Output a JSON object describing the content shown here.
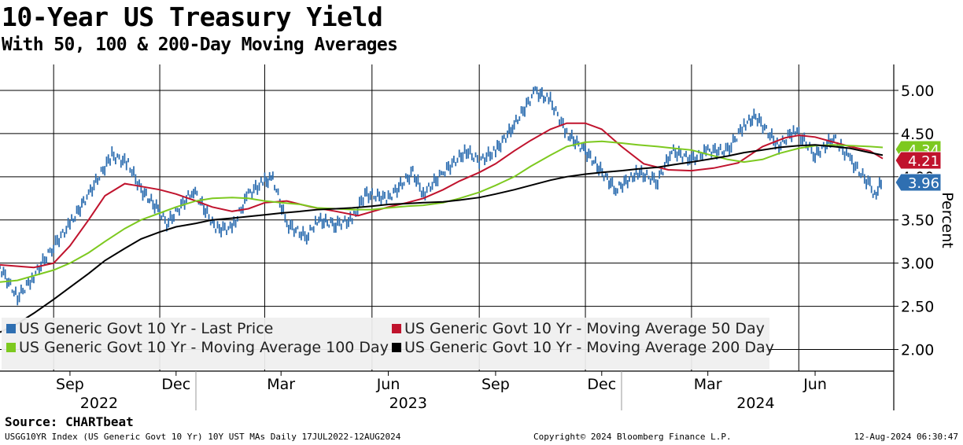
{
  "header": {
    "title": "10-Year US Treasury Yield",
    "subtitle": "With 50, 100 & 200-Day Moving Averages"
  },
  "footer": {
    "source": "Source: CHARTbeat",
    "left": "USGG10YR Index (US Generic Govt 10 Yr) 10Y UST MAs  Daily 17JUL2022-12AUG2024",
    "middle": "Copyright© 2024 Bloomberg Finance L.P.",
    "right": "12-Aug-2024 06:30:47"
  },
  "chart_data": {
    "type": "line",
    "x_range": [
      "2022-07-17",
      "2024-08-12"
    ],
    "ylim": [
      1.75,
      5.3
    ],
    "y_ticks": [
      "5.00",
      "4.50",
      "4.00",
      "3.50",
      "3.00",
      "2.50",
      "2.00"
    ],
    "ylabel": "Percent",
    "grid": true,
    "legend_position": "bottom-left",
    "month_ticks": [
      {
        "date": "2022-09-15",
        "label": "Sep"
      },
      {
        "date": "2022-12-15",
        "label": "Dec"
      },
      {
        "date": "2023-03-15",
        "label": "Mar"
      },
      {
        "date": "2023-06-15",
        "label": "Jun"
      },
      {
        "date": "2023-09-15",
        "label": "Sep"
      },
      {
        "date": "2023-12-15",
        "label": "Dec"
      },
      {
        "date": "2024-03-15",
        "label": "Mar"
      },
      {
        "date": "2024-06-15",
        "label": "Jun"
      }
    ],
    "year_labels": [
      {
        "date": "2022-10-10",
        "label": "2022"
      },
      {
        "date": "2023-07-02",
        "label": "2023"
      },
      {
        "date": "2024-04-25",
        "label": "2024"
      }
    ],
    "year_dividers": [
      "2023-01-01",
      "2024-01-01"
    ],
    "grid_dates": [
      "2022-09-01",
      "2022-12-01",
      "2023-03-01",
      "2023-06-01",
      "2023-09-01",
      "2023-12-01",
      "2024-03-01",
      "2024-06-01"
    ],
    "series": [
      {
        "name": "US Generic Govt 10 Yr - Last Price",
        "color": "#2f6fb1",
        "style": "ohlc",
        "x": [
          "2022-07-17",
          "2022-08-01",
          "2022-08-15",
          "2022-09-01",
          "2022-09-15",
          "2022-10-01",
          "2022-10-21",
          "2022-11-04",
          "2022-11-15",
          "2022-12-01",
          "2022-12-07",
          "2022-12-30",
          "2023-01-18",
          "2023-02-01",
          "2023-02-15",
          "2023-03-01",
          "2023-03-08",
          "2023-03-20",
          "2023-04-06",
          "2023-04-15",
          "2023-05-01",
          "2023-05-15",
          "2023-05-26",
          "2023-06-15",
          "2023-07-06",
          "2023-07-15",
          "2023-08-01",
          "2023-08-21",
          "2023-09-01",
          "2023-09-15",
          "2023-10-01",
          "2023-10-19",
          "2023-11-01",
          "2023-11-15",
          "2023-12-01",
          "2023-12-27",
          "2024-01-15",
          "2024-02-01",
          "2024-02-13",
          "2024-03-01",
          "2024-03-15",
          "2024-04-01",
          "2024-04-15",
          "2024-04-25",
          "2024-05-15",
          "2024-05-29",
          "2024-06-15",
          "2024-07-01",
          "2024-07-15",
          "2024-08-01",
          "2024-08-05",
          "2024-08-12"
        ],
        "values": [
          2.95,
          2.6,
          2.85,
          3.2,
          3.45,
          3.8,
          4.25,
          4.15,
          3.85,
          3.6,
          3.45,
          3.85,
          3.4,
          3.4,
          3.8,
          3.95,
          3.98,
          3.45,
          3.3,
          3.5,
          3.45,
          3.5,
          3.8,
          3.75,
          4.05,
          3.8,
          4.05,
          4.3,
          4.18,
          4.3,
          4.6,
          4.99,
          4.88,
          4.5,
          4.3,
          3.85,
          4.05,
          3.95,
          4.3,
          4.2,
          4.3,
          4.3,
          4.6,
          4.7,
          4.35,
          4.55,
          4.25,
          4.45,
          4.2,
          3.9,
          3.78,
          3.96
        ]
      },
      {
        "name": "US Generic Govt 10 Yr - Moving Average 50 Day",
        "color": "#c0132d",
        "x": [
          "2022-07-17",
          "2022-08-15",
          "2022-09-01",
          "2022-09-15",
          "2022-10-01",
          "2022-10-15",
          "2022-11-01",
          "2022-11-10",
          "2022-12-01",
          "2022-12-15",
          "2023-01-01",
          "2023-01-15",
          "2023-02-01",
          "2023-02-15",
          "2023-03-01",
          "2023-03-20",
          "2023-04-10",
          "2023-05-01",
          "2023-05-20",
          "2023-06-15",
          "2023-07-01",
          "2023-07-15",
          "2023-08-01",
          "2023-08-15",
          "2023-09-01",
          "2023-09-15",
          "2023-10-01",
          "2023-10-15",
          "2023-11-01",
          "2023-11-15",
          "2023-12-01",
          "2023-12-15",
          "2024-01-01",
          "2024-01-20",
          "2024-02-10",
          "2024-03-01",
          "2024-03-20",
          "2024-04-10",
          "2024-05-01",
          "2024-05-20",
          "2024-06-01",
          "2024-06-15",
          "2024-07-01",
          "2024-07-15",
          "2024-08-01",
          "2024-08-12"
        ],
        "values": [
          2.98,
          2.95,
          3.0,
          3.2,
          3.5,
          3.78,
          3.92,
          3.9,
          3.85,
          3.8,
          3.72,
          3.65,
          3.6,
          3.63,
          3.7,
          3.72,
          3.65,
          3.6,
          3.55,
          3.65,
          3.7,
          3.75,
          3.85,
          3.95,
          4.05,
          4.15,
          4.3,
          4.42,
          4.55,
          4.62,
          4.62,
          4.55,
          4.35,
          4.15,
          4.08,
          4.07,
          4.1,
          4.16,
          4.35,
          4.45,
          4.48,
          4.46,
          4.4,
          4.35,
          4.3,
          4.21
        ]
      },
      {
        "name": "US Generic Govt 10 Yr - Moving Average 100 Day",
        "color": "#7dc91f",
        "x": [
          "2022-07-17",
          "2022-08-01",
          "2022-09-01",
          "2022-09-15",
          "2022-10-01",
          "2022-10-15",
          "2022-11-01",
          "2022-11-15",
          "2022-12-01",
          "2022-12-15",
          "2023-01-01",
          "2023-01-15",
          "2023-02-01",
          "2023-02-15",
          "2023-03-01",
          "2023-03-15",
          "2023-04-01",
          "2023-04-15",
          "2023-05-01",
          "2023-05-15",
          "2023-06-01",
          "2023-06-15",
          "2023-07-01",
          "2023-07-15",
          "2023-08-01",
          "2023-08-15",
          "2023-09-01",
          "2023-09-15",
          "2023-10-01",
          "2023-10-15",
          "2023-11-01",
          "2023-11-15",
          "2023-12-01",
          "2023-12-15",
          "2024-01-01",
          "2024-01-15",
          "2024-02-01",
          "2024-02-15",
          "2024-03-01",
          "2024-03-15",
          "2024-04-01",
          "2024-04-15",
          "2024-05-01",
          "2024-05-15",
          "2024-06-01",
          "2024-06-15",
          "2024-07-01",
          "2024-07-15",
          "2024-08-01",
          "2024-08-12"
        ],
        "values": [
          2.78,
          2.8,
          2.92,
          3.0,
          3.12,
          3.25,
          3.4,
          3.5,
          3.58,
          3.65,
          3.72,
          3.75,
          3.76,
          3.75,
          3.72,
          3.7,
          3.68,
          3.64,
          3.63,
          3.62,
          3.62,
          3.64,
          3.66,
          3.67,
          3.7,
          3.75,
          3.82,
          3.9,
          4.0,
          4.12,
          4.25,
          4.35,
          4.4,
          4.41,
          4.39,
          4.37,
          4.35,
          4.33,
          4.31,
          4.26,
          4.2,
          4.17,
          4.2,
          4.27,
          4.33,
          4.36,
          4.37,
          4.36,
          4.35,
          4.34
        ]
      },
      {
        "name": "US Generic Govt 10 Yr - Moving Average 200 Day",
        "color": "#000000",
        "x": [
          "2022-07-17",
          "2022-08-01",
          "2022-08-15",
          "2022-09-01",
          "2022-09-15",
          "2022-10-01",
          "2022-10-15",
          "2022-11-01",
          "2022-11-15",
          "2022-12-01",
          "2022-12-15",
          "2023-01-01",
          "2023-01-15",
          "2023-02-01",
          "2023-02-15",
          "2023-03-01",
          "2023-03-15",
          "2023-04-01",
          "2023-04-15",
          "2023-05-01",
          "2023-05-15",
          "2023-06-01",
          "2023-06-15",
          "2023-07-01",
          "2023-07-15",
          "2023-08-01",
          "2023-08-15",
          "2023-09-01",
          "2023-09-15",
          "2023-10-01",
          "2023-10-15",
          "2023-11-01",
          "2023-11-15",
          "2023-12-01",
          "2023-12-15",
          "2024-01-01",
          "2024-01-15",
          "2024-02-01",
          "2024-02-15",
          "2024-03-01",
          "2024-03-15",
          "2024-04-01",
          "2024-04-15",
          "2024-05-01",
          "2024-05-15",
          "2024-06-01",
          "2024-06-15",
          "2024-07-01",
          "2024-07-15",
          "2024-08-01",
          "2024-08-12"
        ],
        "values": [
          2.2,
          2.3,
          2.42,
          2.58,
          2.72,
          2.88,
          3.03,
          3.17,
          3.28,
          3.36,
          3.42,
          3.46,
          3.5,
          3.52,
          3.54,
          3.56,
          3.58,
          3.6,
          3.62,
          3.63,
          3.64,
          3.66,
          3.68,
          3.69,
          3.7,
          3.71,
          3.73,
          3.76,
          3.8,
          3.85,
          3.9,
          3.96,
          4.0,
          4.03,
          4.05,
          4.07,
          4.09,
          4.11,
          4.14,
          4.17,
          4.2,
          4.24,
          4.28,
          4.31,
          4.34,
          4.36,
          4.37,
          4.35,
          4.33,
          4.28,
          4.25
        ]
      }
    ],
    "last_value_tags": [
      {
        "label": "4.34",
        "value": 4.34,
        "color": "#7dc91f"
      },
      {
        "label": "4.21",
        "value": 4.21,
        "color": "#c0132d"
      },
      {
        "label": "3.96",
        "value": 3.96,
        "color": "#2f6fb1"
      }
    ]
  }
}
